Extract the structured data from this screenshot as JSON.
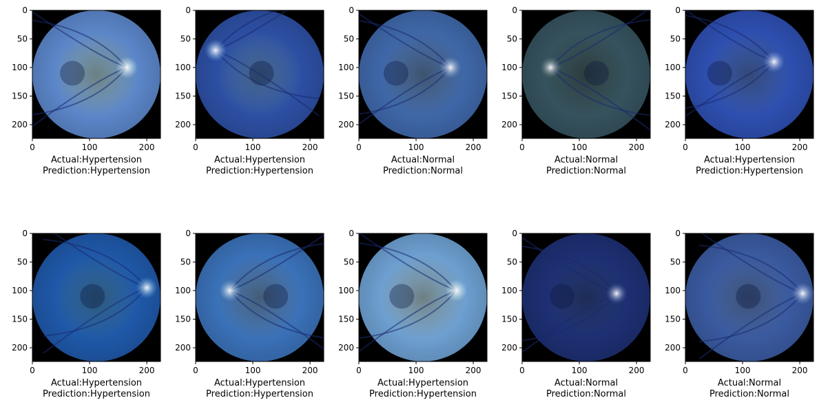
{
  "chart_data": {
    "type": "image-grid",
    "rows": 2,
    "cols": 5,
    "image_size": [
      224,
      224
    ],
    "xlim": [
      0,
      224
    ],
    "ylim": [
      224,
      0
    ],
    "x_ticks": [
      0,
      100,
      200
    ],
    "y_ticks": [
      0,
      50,
      100,
      150,
      200
    ],
    "grid": false,
    "panels": [
      {
        "actual": "Hypertension",
        "prediction": "Hypertension",
        "label_line1": "Actual:Hypertension",
        "label_line2": "Prediction:Hypertension",
        "disc": [
          165,
          100
        ],
        "tint": "#5b86c9",
        "bright": "#bfe6ea"
      },
      {
        "actual": "Hypertension",
        "prediction": "Hypertension",
        "label_line1": "Actual:Hypertension",
        "label_line2": "Prediction:Hypertension",
        "disc": [
          35,
          70
        ],
        "tint": "#2d4fa3",
        "bright": "#6fa6e8"
      },
      {
        "actual": "Normal",
        "prediction": "Normal",
        "label_line1": "Actual:Normal",
        "label_line2": "Prediction:Normal",
        "disc": [
          160,
          100
        ],
        "tint": "#3f67a8",
        "bright": "#6f96c8"
      },
      {
        "actual": "Normal",
        "prediction": "Normal",
        "label_line1": "Actual:Normal",
        "label_line2": "Prediction:Normal",
        "disc": [
          50,
          100
        ],
        "tint": "#35525e",
        "bright": "#4d6a6c"
      },
      {
        "actual": "Hypertension",
        "prediction": "Hypertension",
        "label_line1": "Actual:Hypertension",
        "label_line2": "Prediction:Hypertension",
        "disc": [
          155,
          90
        ],
        "tint": "#2e4fb0",
        "bright": "#5b83d6"
      },
      {
        "actual": "Hypertension",
        "prediction": "Hypertension",
        "label_line1": "Actual:Hypertension",
        "label_line2": "Prediction:Hypertension",
        "disc": [
          200,
          95
        ],
        "tint": "#1f58a8",
        "bright": "#4f9bd8"
      },
      {
        "actual": "Hypertension",
        "prediction": "Hypertension",
        "label_line1": "Actual:Hypertension",
        "label_line2": "Prediction:Hypertension",
        "disc": [
          60,
          100
        ],
        "tint": "#3a71b8",
        "bright": "#79a6d6"
      },
      {
        "actual": "Hypertension",
        "prediction": "Hypertension",
        "label_line1": "Actual:Hypertension",
        "label_line2": "Prediction:Hypertension",
        "disc": [
          170,
          100
        ],
        "tint": "#6d9fd0",
        "bright": "#c4e6ee"
      },
      {
        "actual": "Normal",
        "prediction": "Normal",
        "label_line1": "Actual:Normal",
        "label_line2": "Prediction:Normal",
        "disc": [
          165,
          105
        ],
        "tint": "#1d2f72",
        "bright": "#35519c"
      },
      {
        "actual": "Normal",
        "prediction": "Normal",
        "label_line1": "Actual:Normal",
        "label_line2": "Prediction:Normal",
        "disc": [
          205,
          105
        ],
        "tint": "#3a5aa0",
        "bright": "#6a8fd0"
      }
    ]
  }
}
